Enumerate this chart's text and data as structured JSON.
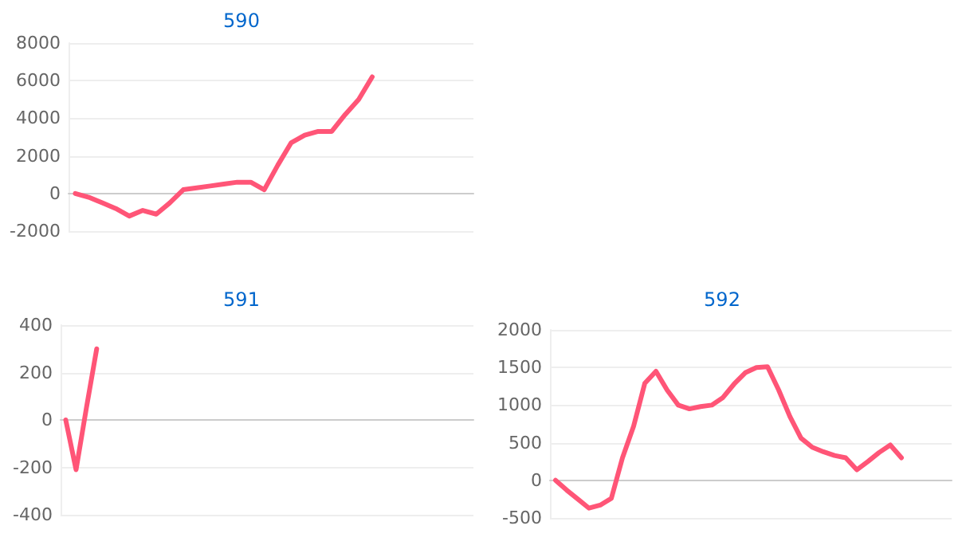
{
  "chart_data": [
    {
      "type": "line",
      "title": "590",
      "categories": [
        null,
        null,
        null,
        null,
        null,
        null,
        null,
        null,
        null,
        null,
        null,
        null,
        null,
        null,
        null,
        null,
        null,
        null,
        null,
        null,
        null,
        null,
        null,
        null,
        null,
        null,
        null,
        null,
        null,
        null
      ],
      "series": [
        {
          "color": "#ff5577",
          "values": [
            0,
            -200,
            -500,
            -800,
            -1200,
            -900,
            -1100,
            -500,
            200,
            300,
            400,
            500,
            600,
            600,
            200,
            1500,
            2700,
            3100,
            3300,
            3300,
            4200,
            5000,
            6200,
            null,
            null,
            null,
            null,
            null,
            null,
            null
          ]
        }
      ],
      "ylim": [
        -2000,
        8000
      ],
      "yticks": [
        -2000,
        0,
        2000,
        4000,
        6000,
        8000
      ],
      "grid": "y",
      "marker": "none",
      "line_style": "solid"
    },
    {
      "type": "line",
      "title": "591",
      "categories": [
        null,
        null,
        null,
        null,
        null,
        null,
        null,
        null,
        null,
        null,
        null,
        null,
        null,
        null,
        null,
        null,
        null,
        null,
        null,
        null,
        null,
        null,
        null,
        null,
        null,
        null,
        null,
        null,
        null,
        null,
        null,
        null,
        null,
        null,
        null,
        null,
        null,
        null,
        null,
        null
      ],
      "series": [
        {
          "color": "#ff5577",
          "values": [
            0,
            -210,
            50,
            300,
            null,
            null,
            null,
            null,
            null,
            null,
            null,
            null,
            null,
            null,
            null,
            null,
            null,
            null,
            null,
            null,
            null,
            null,
            null,
            null,
            null,
            null,
            null,
            null,
            null,
            null,
            null,
            null,
            null,
            null,
            null,
            null,
            null,
            null,
            null,
            null
          ]
        }
      ],
      "ylim": [
        -400,
        400
      ],
      "yticks": [
        -400,
        -200,
        0,
        200,
        400
      ],
      "grid": "y",
      "marker": "none",
      "line_style": "solid"
    },
    {
      "type": "line",
      "title": "592",
      "categories": [
        null,
        null,
        null,
        null,
        null,
        null,
        null,
        null,
        null,
        null,
        null,
        null,
        null,
        null,
        null,
        null,
        null,
        null,
        null,
        null,
        null,
        null,
        null,
        null,
        null,
        null,
        null,
        null,
        null,
        null,
        null,
        null,
        null,
        null,
        null,
        null
      ],
      "series": [
        {
          "color": "#ff5577",
          "values": [
            0,
            -130,
            -250,
            -370,
            -330,
            -240,
            300,
            720,
            1290,
            1450,
            1200,
            1000,
            950,
            980,
            1000,
            1100,
            1280,
            1430,
            1500,
            1510,
            1200,
            850,
            560,
            440,
            380,
            330,
            300,
            140,
            250,
            370,
            470,
            300,
            null,
            null,
            null,
            null
          ]
        }
      ],
      "ylim": [
        -500,
        2000
      ],
      "yticks": [
        -500,
        0,
        500,
        1000,
        1500,
        2000
      ],
      "grid": "y",
      "marker": "none",
      "line_style": "solid"
    }
  ]
}
